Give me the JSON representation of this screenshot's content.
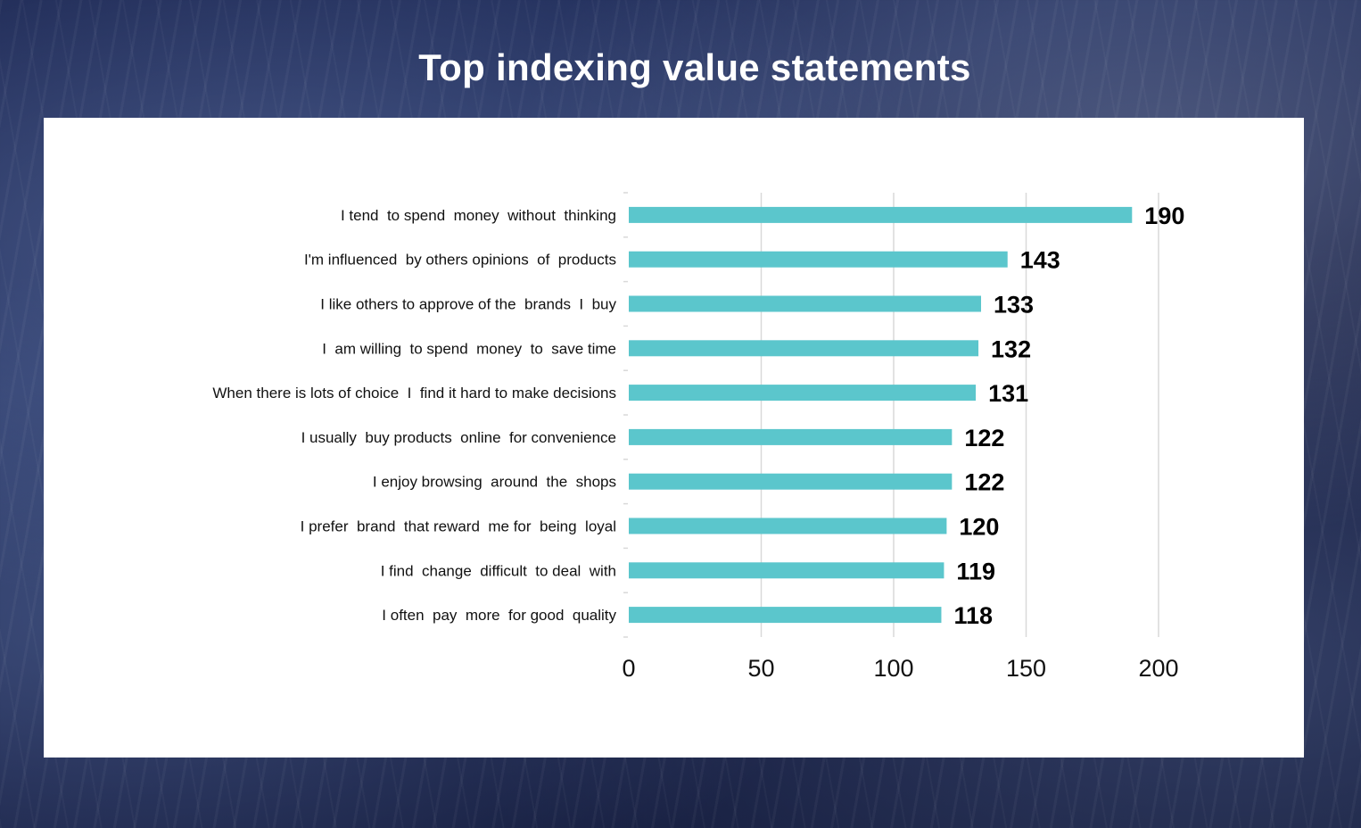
{
  "page": {
    "title": "Top indexing value statements"
  },
  "colors": {
    "bar": "#5bc6cc",
    "gridline": "#d9d9d9",
    "panel": "#ffffff"
  },
  "chart_data": {
    "type": "bar",
    "orientation": "horizontal",
    "title": "",
    "xlabel": "",
    "ylabel": "",
    "categories": [
      "I tend  to spend  money  without  thinking",
      "I'm influenced  by others opinions  of  products",
      "I like others to approve of the  brands  I  buy",
      "I  am willing  to spend  money  to  save time",
      "When there is lots of choice  I  find it hard to make decisions",
      "I usually  buy products  online  for convenience",
      "I enjoy browsing  around  the  shops",
      "I prefer  brand  that reward  me for  being  loyal",
      "I find  change  difficult  to deal  with",
      "I often  pay  more  for good  quality"
    ],
    "values": [
      190,
      143,
      133,
      132,
      131,
      122,
      122,
      120,
      119,
      118
    ],
    "xlim": [
      0,
      200
    ],
    "xticks": [
      "0",
      "50",
      "100",
      "150",
      "200"
    ],
    "grid": true,
    "legend": "none"
  }
}
